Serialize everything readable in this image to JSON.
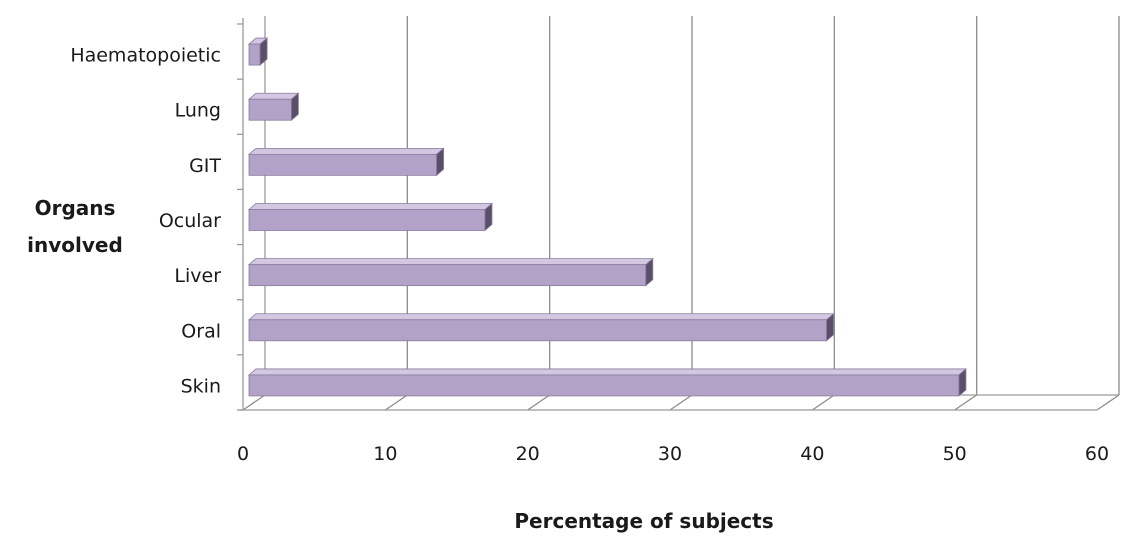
{
  "chart_data": {
    "type": "bar",
    "orientation": "horizontal",
    "style": "3d",
    "categories": [
      "Skin",
      "Oral",
      "Liver",
      "Ocular",
      "GIT",
      "Lung",
      "Haematopoietic"
    ],
    "series": [
      {
        "values": [
          50.3,
          41.0,
          28.3,
          17.0,
          13.6,
          3.4,
          1.2
        ]
      }
    ],
    "xlim": [
      0,
      60
    ],
    "xticks": [
      0,
      10,
      20,
      30,
      40,
      50,
      60
    ],
    "xlabel": "Percentage of subjects",
    "ylabel": "Organs involved",
    "grid": true,
    "legend": "none",
    "colors": {
      "bar_face": "#b3a2c7",
      "bar_top": "#d3c8e2",
      "bar_side": "#5a4f68",
      "bar_edge": "#8a7aa0",
      "axis": "#9a9a9a",
      "grid": "#8c8c8c"
    }
  }
}
